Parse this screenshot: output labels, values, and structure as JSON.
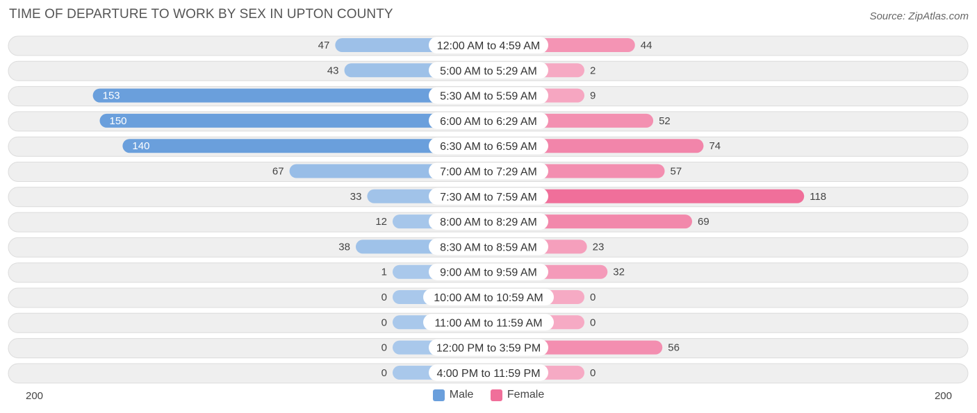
{
  "title": "TIME OF DEPARTURE TO WORK BY SEX IN UPTON COUNTY",
  "source": "Source: ZipAtlas.com",
  "colors": {
    "male_strong": "#6a9fdc",
    "male_light": "#a9c8eb",
    "female_strong": "#f06f9a",
    "female_light": "#f6aac4",
    "row_bg": "#efefef"
  },
  "chart_data": {
    "type": "bar",
    "orientation": "horizontal-diverging",
    "title": "TIME OF DEPARTURE TO WORK BY SEX IN UPTON COUNTY",
    "categories": [
      "12:00 AM to 4:59 AM",
      "5:00 AM to 5:29 AM",
      "5:30 AM to 5:59 AM",
      "6:00 AM to 6:29 AM",
      "6:30 AM to 6:59 AM",
      "7:00 AM to 7:29 AM",
      "7:30 AM to 7:59 AM",
      "8:00 AM to 8:29 AM",
      "8:30 AM to 8:59 AM",
      "9:00 AM to 9:59 AM",
      "10:00 AM to 10:59 AM",
      "11:00 AM to 11:59 AM",
      "12:00 PM to 3:59 PM",
      "4:00 PM to 11:59 PM"
    ],
    "series": [
      {
        "name": "Male",
        "values": [
          47,
          43,
          153,
          150,
          140,
          67,
          33,
          12,
          38,
          1,
          0,
          0,
          0,
          0
        ]
      },
      {
        "name": "Female",
        "values": [
          44,
          2,
          9,
          52,
          74,
          57,
          118,
          69,
          23,
          32,
          0,
          0,
          56,
          0
        ]
      }
    ],
    "axis_min_label": "200",
    "axis_max_label": "200",
    "xlim": [
      -200,
      200
    ],
    "legend": [
      "Male",
      "Female"
    ],
    "legend_position": "bottom-center"
  }
}
